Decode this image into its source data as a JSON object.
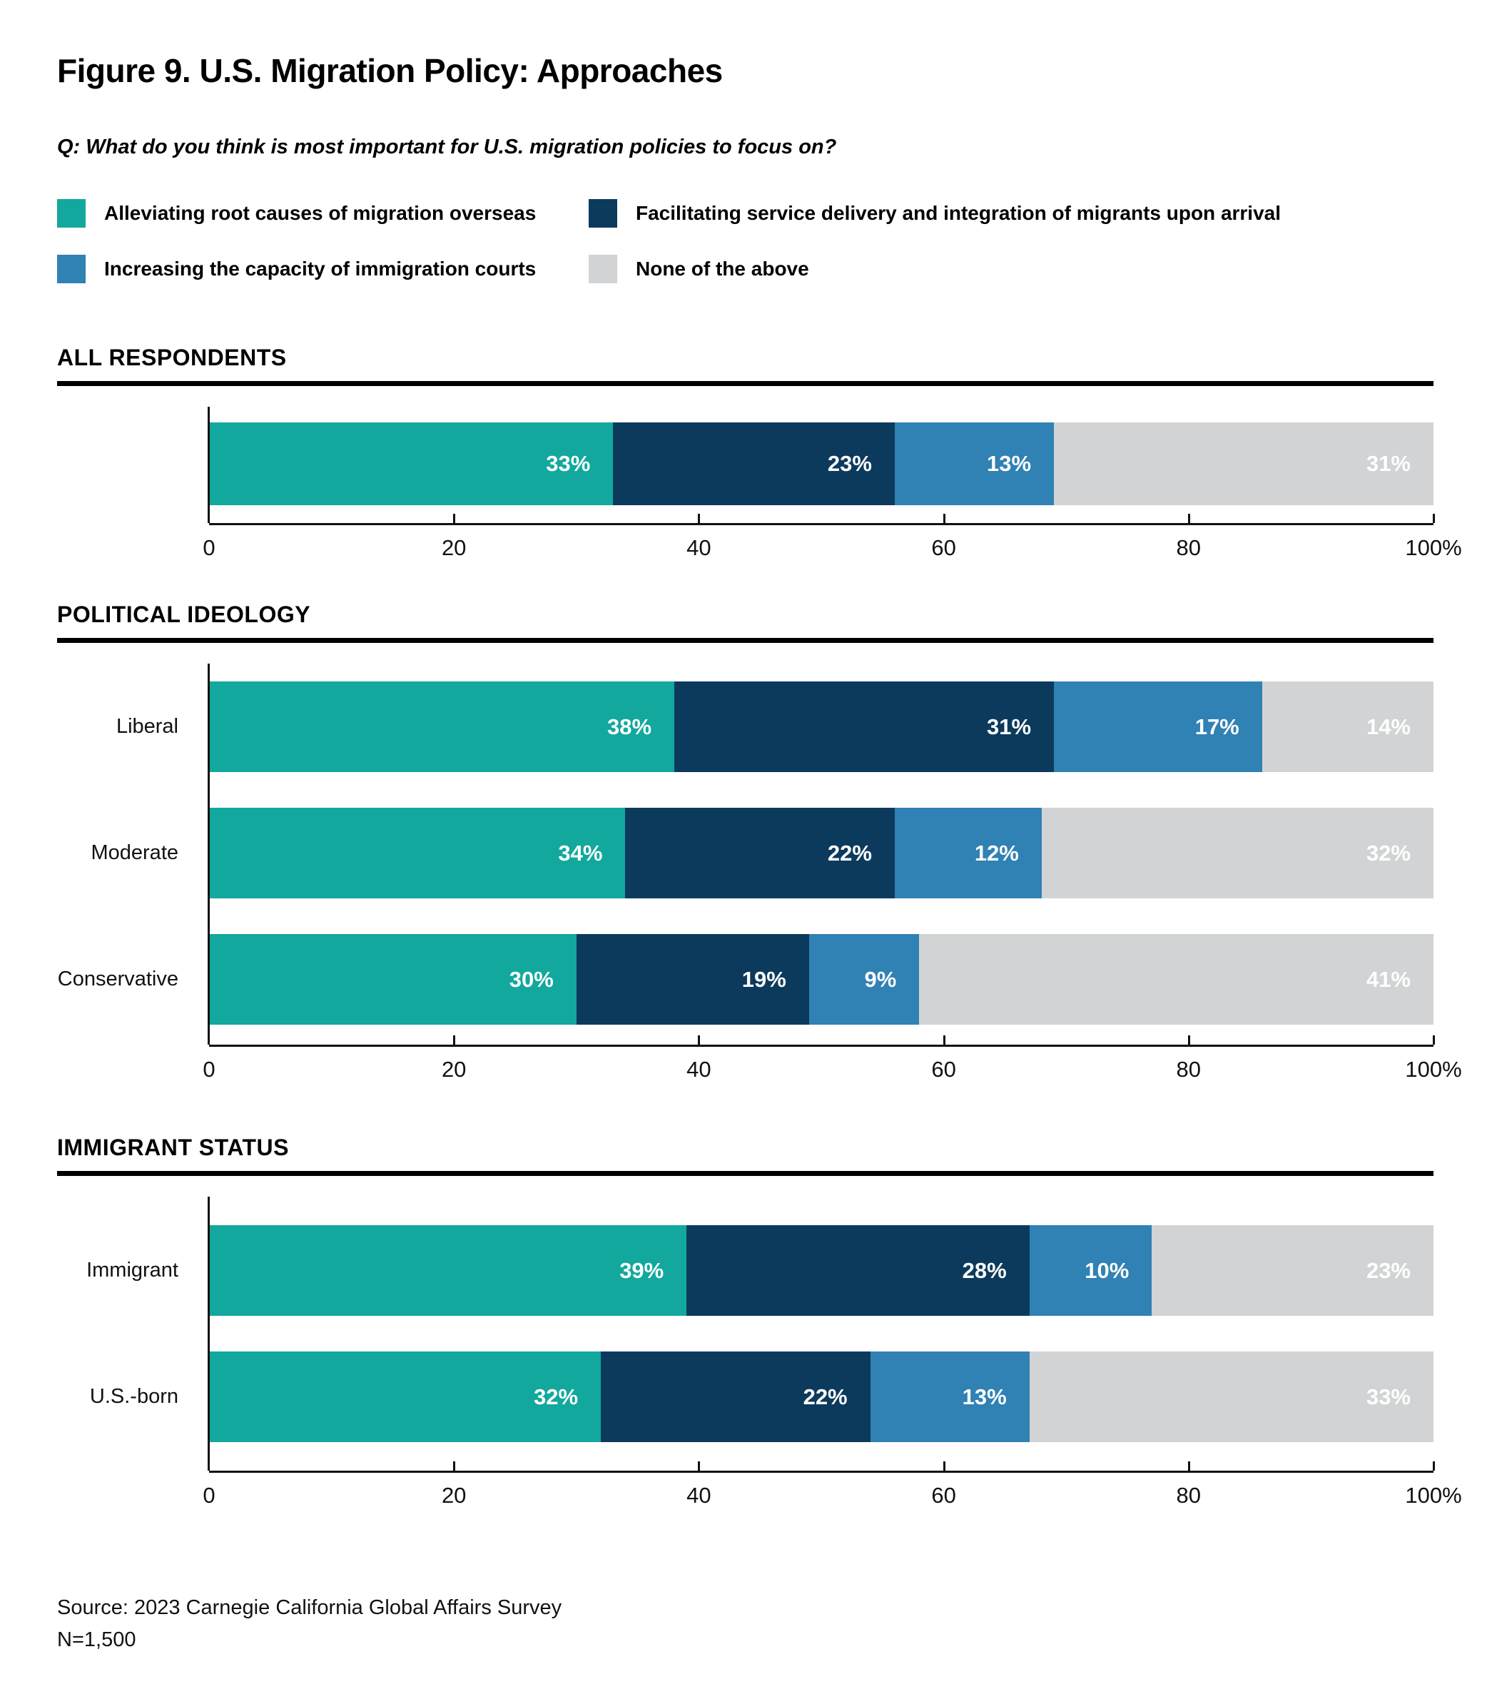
{
  "title": "Figure 9. U.S. Migration Policy: Approaches",
  "question": "Q: What do you think is most important for U.S. migration policies to focus on?",
  "colors": {
    "teal": "#12A89D",
    "navy": "#0C3A5C",
    "blue": "#3081B4",
    "gray": "#D1D3D4"
  },
  "legend": [
    {
      "label": "Alleviating root causes of migration overseas",
      "color": "#12A89D"
    },
    {
      "label": "Facilitating service delivery and integration of migrants upon arrival",
      "color": "#0C3A5C"
    },
    {
      "label": "Increasing the capacity of immigration courts",
      "color": "#3081B4"
    },
    {
      "label": "None of the above",
      "color": "#D1D3D4"
    }
  ],
  "chart_data": {
    "type": "bar",
    "stacked": true,
    "orientation": "horizontal",
    "unit": "%",
    "xlim": [
      0,
      100
    ],
    "x_ticks": [
      {
        "value": 0,
        "label": "0"
      },
      {
        "value": 20,
        "label": "20"
      },
      {
        "value": 40,
        "label": "40"
      },
      {
        "value": 60,
        "label": "60"
      },
      {
        "value": 80,
        "label": "80"
      },
      {
        "value": 100,
        "label": "100%"
      }
    ],
    "series_names": [
      "Alleviating root causes of migration overseas",
      "Facilitating service delivery and integration of migrants upon arrival",
      "Increasing the capacity of immigration courts",
      "None of the above"
    ],
    "series_colors": [
      "#12A89D",
      "#0C3A5C",
      "#3081B4",
      "#D1D3D4"
    ],
    "sections": [
      {
        "header": "ALL RESPONDENTS",
        "rows": [
          {
            "label": "",
            "values": [
              33,
              23,
              13,
              31
            ]
          }
        ]
      },
      {
        "header": "POLITICAL IDEOLOGY",
        "rows": [
          {
            "label": "Liberal",
            "values": [
              38,
              31,
              17,
              14
            ]
          },
          {
            "label": "Moderate",
            "values": [
              34,
              22,
              12,
              32
            ]
          },
          {
            "label": "Conservative",
            "values": [
              30,
              19,
              9,
              41
            ]
          }
        ]
      },
      {
        "header": "IMMIGRANT STATUS",
        "rows": [
          {
            "label": "Immigrant",
            "values": [
              39,
              28,
              10,
              23
            ]
          },
          {
            "label": "U.S.-born",
            "values": [
              32,
              22,
              13,
              33
            ]
          }
        ]
      }
    ]
  },
  "footer": {
    "source": "Source: 2023 Carnegie California Global Affairs Survey",
    "n": "N=1,500"
  }
}
